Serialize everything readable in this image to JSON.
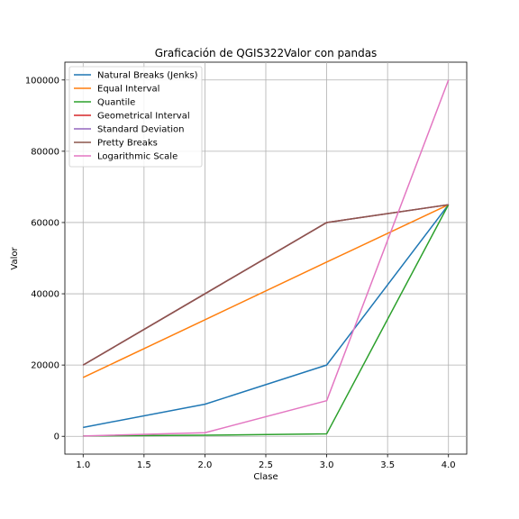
{
  "chart_data": {
    "type": "line",
    "title": "Graficación de QGIS322Valor con pandas",
    "xlabel": "Clase",
    "ylabel": "Valor",
    "xlim": [
      0.85,
      4.15
    ],
    "ylim": [
      -5000,
      105000
    ],
    "x_ticks": [
      1.0,
      1.5,
      2.0,
      2.5,
      3.0,
      3.5,
      4.0
    ],
    "x_tick_labels": [
      "1.0",
      "1.5",
      "2.0",
      "2.5",
      "3.0",
      "3.5",
      "4.0"
    ],
    "y_ticks": [
      0,
      20000,
      40000,
      60000,
      80000,
      100000
    ],
    "y_tick_labels": [
      "0",
      "20000",
      "40000",
      "60000",
      "80000",
      "100000"
    ],
    "grid": true,
    "legend_position": "top-left",
    "x": [
      1.0,
      2.0,
      3.0,
      4.0
    ],
    "series": [
      {
        "name": "Natural Breaks (Jenks)",
        "color": "#1f77b4",
        "values": [
          2500,
          9000,
          20000,
          65000
        ]
      },
      {
        "name": "Equal Interval",
        "color": "#ff7f0e",
        "values": [
          16500,
          32700,
          48900,
          65000
        ]
      },
      {
        "name": "Quantile",
        "color": "#2ca02c",
        "values": [
          100,
          300,
          700,
          65000
        ]
      },
      {
        "name": "Geometrical Interval",
        "color": "#d62728",
        "values": [
          20000,
          40000,
          60000,
          65000
        ]
      },
      {
        "name": "Standard Deviation",
        "color": "#9467bd",
        "values": [
          20000,
          40000,
          60000,
          65000
        ]
      },
      {
        "name": "Pretty Breaks",
        "color": "#8c564b",
        "values": [
          20000,
          40000,
          60000,
          65000
        ]
      },
      {
        "name": "Logarithmic Scale",
        "color": "#e377c2",
        "values": [
          100,
          1000,
          10000,
          100000
        ]
      }
    ]
  }
}
